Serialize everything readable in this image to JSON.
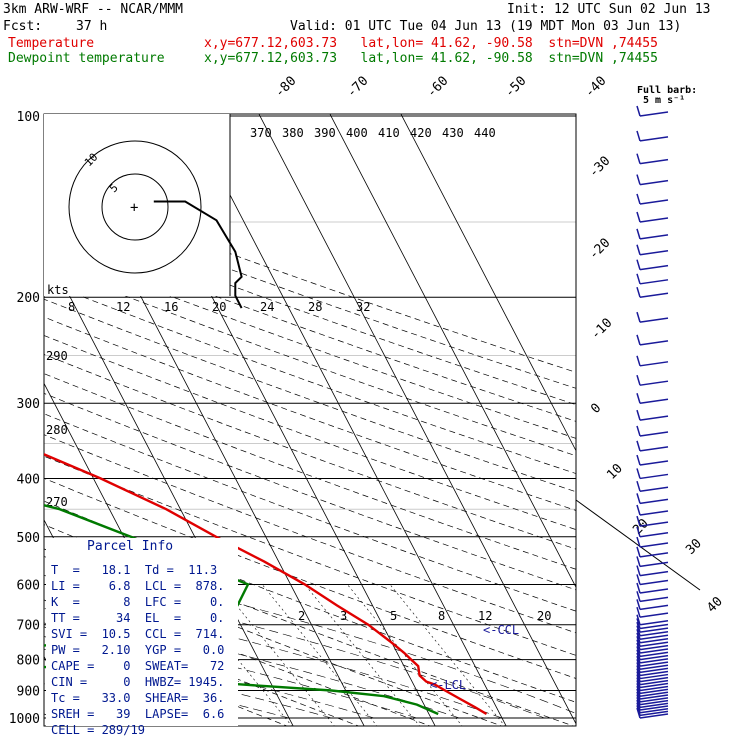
{
  "header": {
    "model": "3km ARW-WRF -- NCAR/MMM",
    "init": "Init: 12 UTC Sun 02 Jun 13",
    "fcst_label": "Fcst:",
    "fcst_value": "37 h",
    "valid": "Valid: 01 UTC Tue 04 Jun 13 (19 MDT Mon 03 Jun 13)",
    "temp_label": "Temperature",
    "dew_label": "Dewpoint temperature",
    "location_info": "x,y=677.12,603.73   lat,lon= 41.62, -90.58  stn=DVN ,74455"
  },
  "barb_legend": {
    "line1": "Full barb:",
    "line2": "5 m s⁻¹"
  },
  "parcel_info": {
    "title": "Parcel Info",
    "rows": [
      "T  =   18.1  Td =  11.3",
      "LI =    6.8  LCL =  878.",
      "K  =      8  LFC =    0.",
      "TT =     34  EL  =    0.",
      "SVI =  10.5  CCL =  714.",
      "PW =   2.10  YGP =   0.0",
      "CAPE =    0  SWEAT=   72",
      "CIN =     0  HWBZ= 1945.",
      "Tc =   33.0  SHEAR=  36.",
      "SREH =   39  LAPSE=  6.6",
      "CELL = 289/19"
    ]
  },
  "hodograph": {
    "units": "kts",
    "rings": [
      "5",
      "10"
    ]
  },
  "annotations": {
    "ccl": "<-CCL",
    "lcl": "<-LCL"
  },
  "chart_data": {
    "type": "line",
    "diagram": "Skew-T log-P",
    "y_axis": {
      "scale": "log",
      "ticks": [
        100,
        200,
        300,
        400,
        500,
        600,
        700,
        800,
        900,
        1000
      ]
    },
    "isotherm_labels": [
      "-80",
      "-70",
      "-60",
      "-50",
      "-40",
      "-30",
      "-20",
      "-10",
      "0",
      "10",
      "20",
      "30",
      "40"
    ],
    "theta_e_labels": [
      "370",
      "380",
      "390",
      "400",
      "410",
      "420",
      "430",
      "440"
    ],
    "theta_labels": [
      "290",
      "280",
      "270"
    ],
    "mixing_ratio_top_labels": [
      "8",
      "12",
      "16",
      "20",
      "24",
      "28",
      "32"
    ],
    "mixing_ratio_bottom_labels": [
      "2",
      "3",
      "5",
      "8",
      "12",
      "20"
    ],
    "series": [
      {
        "name": "Temperature",
        "color": "#e00000",
        "points": [
          [
            100,
            -58
          ],
          [
            130,
            -63
          ],
          [
            150,
            -64
          ],
          [
            170,
            -65
          ],
          [
            185,
            -64
          ],
          [
            200,
            -60
          ],
          [
            250,
            -49
          ],
          [
            300,
            -38
          ],
          [
            350,
            -28
          ],
          [
            400,
            -19
          ],
          [
            450,
            -12
          ],
          [
            500,
            -7
          ],
          [
            550,
            -2
          ],
          [
            600,
            2
          ],
          [
            650,
            5
          ],
          [
            700,
            8
          ],
          [
            750,
            10
          ],
          [
            780,
            11
          ],
          [
            800,
            11.5
          ],
          [
            820,
            12
          ],
          [
            850,
            11.5
          ],
          [
            870,
            12
          ],
          [
            880,
            13
          ],
          [
            900,
            14
          ],
          [
            930,
            15.5
          ],
          [
            960,
            17
          ],
          [
            985,
            18.1
          ]
        ]
      },
      {
        "name": "Dewpoint temperature",
        "color": "#007a00",
        "points": [
          [
            100,
            -75
          ],
          [
            130,
            -76
          ],
          [
            160,
            -76
          ],
          [
            180,
            -77
          ],
          [
            200,
            -80
          ],
          [
            250,
            -72
          ],
          [
            300,
            -63
          ],
          [
            350,
            -52
          ],
          [
            400,
            -42
          ],
          [
            450,
            -27
          ],
          [
            500,
            -19
          ],
          [
            560,
            -11
          ],
          [
            600,
            -6
          ],
          [
            650,
            -9
          ],
          [
            700,
            -17
          ],
          [
            730,
            -27
          ],
          [
            760,
            -40
          ],
          [
            790,
            -60
          ],
          [
            800,
            -59
          ],
          [
            820,
            -42
          ],
          [
            850,
            -28
          ],
          [
            870,
            -20
          ],
          [
            880,
            -14
          ],
          [
            900,
            -2
          ],
          [
            920,
            5
          ],
          [
            950,
            9
          ],
          [
            985,
            11.3
          ]
        ]
      }
    ],
    "hodograph_kts": [
      [
        3,
        -2
      ],
      [
        8,
        -2
      ],
      [
        13,
        -5
      ],
      [
        16,
        -10
      ],
      [
        17,
        -14
      ],
      [
        16,
        -15
      ],
      [
        16,
        -17
      ],
      [
        17,
        -19
      ]
    ],
    "wind_barbs": {
      "pressure_levels_hpa": [
        1000,
        990,
        980,
        970,
        960,
        950,
        940,
        930,
        920,
        910,
        900,
        890,
        880,
        870,
        860,
        850,
        840,
        830,
        820,
        810,
        800,
        790,
        780,
        770,
        760,
        750,
        740,
        730,
        720,
        710,
        700,
        680,
        660,
        640,
        620,
        600,
        580,
        560,
        540,
        520,
        500,
        480,
        460,
        440,
        420,
        400,
        380,
        360,
        340,
        320,
        300,
        280,
        260,
        240,
        220,
        200,
        190,
        180,
        170,
        160,
        150,
        140,
        130,
        120,
        110,
        100
      ],
      "speed_m_s": [
        5,
        5,
        5,
        5,
        5,
        5,
        5,
        5,
        5,
        5,
        5,
        5,
        5,
        5,
        5,
        5,
        5,
        5,
        5,
        5,
        5,
        5,
        5,
        5,
        5,
        5,
        5,
        5,
        5,
        5,
        5,
        5,
        5,
        5,
        5,
        5,
        5,
        5,
        5,
        5,
        5,
        5,
        5,
        5,
        5,
        5,
        5,
        5,
        5,
        5,
        5,
        5,
        5,
        5,
        5,
        5,
        5,
        5,
        5,
        5,
        5,
        5,
        5,
        5,
        5,
        5
      ]
    }
  },
  "colors": {
    "temperature": "#e00000",
    "dewpoint": "#007a00",
    "barbs": "#1a1a9a",
    "grid": "#000000"
  }
}
